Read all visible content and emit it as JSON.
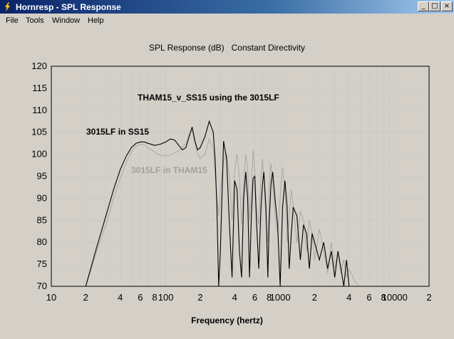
{
  "window": {
    "title": "Hornresp - SPL Response",
    "minimize_glyph": "_",
    "maximize_glyph": "□",
    "close_glyph": "×"
  },
  "menu": [
    "File",
    "Tools",
    "Window",
    "Help"
  ],
  "chart_data": {
    "type": "line",
    "title": "SPL Response (dB)   Constant Directivity",
    "subtitle": "THAM15_v_SS15 using the 3015LF",
    "xlabel": "Frequency (hertz)",
    "ylabel": "",
    "x_scale": "log",
    "xlim": [
      10,
      20000
    ],
    "ylim": [
      70,
      120
    ],
    "grid": true,
    "y_ticks": [
      120,
      115,
      110,
      105,
      100,
      95,
      90,
      85,
      80,
      75,
      70
    ],
    "x_tick_labels": [
      {
        "x": 10,
        "label": "10"
      },
      {
        "x": 20,
        "label": "2"
      },
      {
        "x": 40,
        "label": "4"
      },
      {
        "x": 60,
        "label": "6"
      },
      {
        "x": 80,
        "label": "8"
      },
      {
        "x": 100,
        "label": "100"
      },
      {
        "x": 200,
        "label": "2"
      },
      {
        "x": 400,
        "label": "4"
      },
      {
        "x": 600,
        "label": "6"
      },
      {
        "x": 800,
        "label": "8"
      },
      {
        "x": 1000,
        "label": "1000"
      },
      {
        "x": 2000,
        "label": "2"
      },
      {
        "x": 4000,
        "label": "4"
      },
      {
        "x": 6000,
        "label": "6"
      },
      {
        "x": 8000,
        "label": "8"
      },
      {
        "x": 10000,
        "label": "10000"
      },
      {
        "x": 20000,
        "label": "2"
      }
    ],
    "series": [
      {
        "name": "3015LF in SS15",
        "color": "#000000",
        "x": [
          20,
          25,
          30,
          35,
          40,
          45,
          50,
          55,
          60,
          65,
          70,
          80,
          90,
          100,
          110,
          120,
          130,
          140,
          150,
          160,
          170,
          180,
          190,
          200,
          220,
          240,
          260,
          270,
          280,
          290,
          300,
          320,
          340,
          360,
          380,
          400,
          420,
          440,
          460,
          480,
          500,
          520,
          540,
          560,
          580,
          600,
          620,
          650,
          680,
          700,
          720,
          750,
          780,
          800,
          830,
          860,
          900,
          950,
          1000,
          1050,
          1100,
          1150,
          1200,
          1250,
          1300,
          1400,
          1500,
          1600,
          1700,
          1800,
          1900,
          2000,
          2200,
          2400,
          2600,
          2800,
          3000,
          3200,
          3400,
          3600,
          3800,
          4000
        ],
        "y": [
          70,
          79,
          86,
          92,
          96.5,
          99.5,
          101.5,
          102.5,
          102.8,
          102.8,
          102.5,
          102,
          102.3,
          102.8,
          103.5,
          103.2,
          102,
          101,
          101.5,
          104,
          106.2,
          103,
          101,
          101.5,
          104,
          107.5,
          105,
          99,
          88,
          70,
          78,
          103,
          99,
          84,
          72,
          94,
          92,
          78,
          72,
          90,
          96,
          90,
          72,
          86,
          94.5,
          95,
          85,
          74,
          88,
          93,
          96,
          88,
          72,
          84,
          93,
          96,
          90,
          84,
          70,
          88,
          94,
          88,
          74,
          82,
          88,
          86,
          76,
          84,
          82,
          74,
          82,
          80,
          76,
          80,
          74,
          78,
          72,
          78,
          74,
          70,
          76,
          70
        ]
      },
      {
        "name": "3015LF in THAM15",
        "color": "#a0a0a0",
        "x": [
          20,
          25,
          30,
          35,
          40,
          45,
          50,
          55,
          60,
          65,
          70,
          80,
          90,
          100,
          110,
          120,
          130,
          140,
          150,
          160,
          170,
          180,
          190,
          200,
          220,
          240,
          260,
          270,
          280,
          290,
          300,
          320,
          340,
          360,
          380,
          400,
          420,
          440,
          460,
          480,
          500,
          520,
          540,
          560,
          580,
          600,
          620,
          650,
          680,
          700,
          720,
          750,
          780,
          800,
          830,
          860,
          900,
          950,
          1000,
          1050,
          1100,
          1150,
          1200,
          1250,
          1300,
          1400,
          1500,
          1600,
          1700,
          1800,
          1900,
          2000,
          2200,
          2400,
          2600,
          2800,
          3000,
          3200,
          3400,
          3600,
          3800,
          4000,
          4500,
          5000
        ],
        "y": [
          70,
          78,
          84,
          90,
          94.5,
          98,
          100.5,
          101.8,
          102.3,
          102.2,
          101.5,
          100.5,
          99.7,
          99.6,
          99.8,
          100.3,
          100.8,
          101.5,
          102.5,
          104.5,
          105.5,
          102.5,
          100,
          99,
          100,
          103.5,
          101,
          96,
          90,
          86,
          92,
          98.5,
          100,
          95,
          85,
          96,
          100,
          95,
          84,
          94,
          100,
          97,
          85,
          92,
          101,
          96,
          88,
          84,
          95,
          99,
          95,
          85,
          80,
          92,
          98,
          93,
          86,
          82,
          90,
          97,
          92,
          80,
          86,
          92,
          88,
          80,
          87,
          85,
          78,
          85,
          82,
          76,
          83,
          78,
          73,
          80,
          74,
          78,
          73,
          76,
          72,
          74,
          71,
          70
        ]
      }
    ],
    "annotations": [
      {
        "text": "THAM15_v_SS15 using the 3015LF",
        "color": "#000000"
      },
      {
        "text": "3015LF in SS15",
        "color": "#000000"
      },
      {
        "text": "3015LF in THAM15",
        "color": "#a0a0a0"
      }
    ]
  }
}
